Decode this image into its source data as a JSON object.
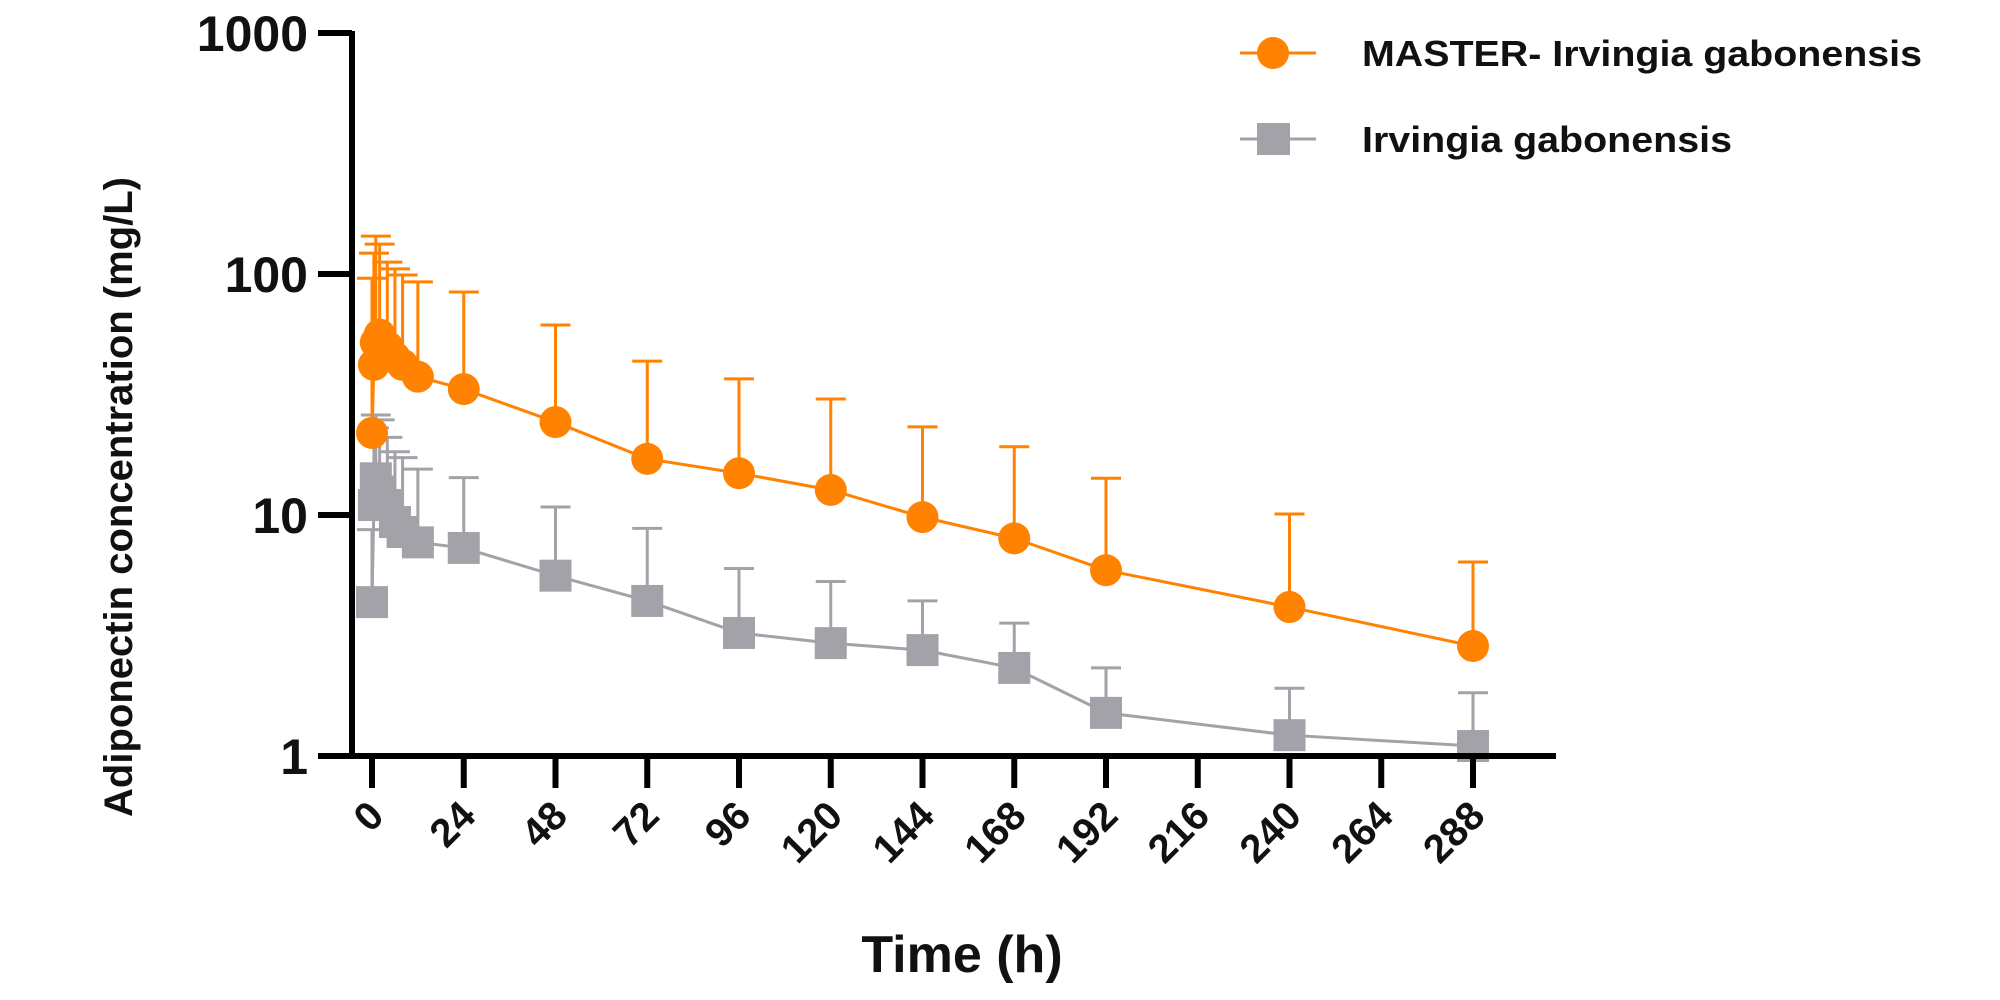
{
  "chart_data": {
    "type": "line",
    "title": "",
    "xlabel": "Time (h)",
    "ylabel": "Adiponectin concentration (mg/L)",
    "yscale": "log",
    "ylim": [
      1,
      1000
    ],
    "xlim": [
      0,
      300
    ],
    "x_ticks": [
      0,
      24,
      48,
      72,
      96,
      120,
      144,
      168,
      192,
      216,
      240,
      264,
      288
    ],
    "x_tick_labels": [
      "0",
      "24",
      "48",
      "72",
      "96",
      "120",
      "144",
      "168",
      "192",
      "216",
      "240",
      "264",
      "288"
    ],
    "y_ticks": [
      1,
      10,
      100,
      1000
    ],
    "y_tick_labels": [
      "1",
      "10",
      "100",
      "1000"
    ],
    "grid": false,
    "legend_position": "top-right",
    "x": [
      0,
      0.5,
      1,
      2,
      4,
      6,
      8,
      12,
      24,
      48,
      72,
      96,
      120,
      144,
      168,
      192,
      240,
      288
    ],
    "series": [
      {
        "name": "MASTER- Irvingia gabonensis",
        "color": "#FF8200",
        "marker": "circle",
        "values": [
          21.9,
          42,
          52,
          56,
          50,
          45,
          42,
          37.5,
          33.3,
          24.3,
          17.1,
          14.9,
          12.7,
          9.8,
          8.0,
          5.9,
          4.15,
          2.86
        ],
        "error_upper": [
          96,
          122,
          143.6,
          133,
          112,
          105,
          99,
          92.7,
          84.2,
          61.4,
          43.5,
          36.7,
          30.3,
          23.2,
          19.2,
          14.2,
          10.1,
          6.38
        ]
      },
      {
        "name": "Irvingia gabonensis",
        "color": "#A2A2A8",
        "marker": "square",
        "values": [
          4.35,
          11.0,
          14.2,
          12.5,
          11.0,
          9.35,
          8.5,
          7.7,
          7.3,
          5.6,
          4.4,
          3.24,
          2.94,
          2.75,
          2.32,
          1.51,
          1.22,
          1.1
        ],
        "error_upper": [
          8.7,
          23.0,
          26.0,
          24.8,
          21.0,
          18.3,
          17.3,
          15.5,
          14.3,
          10.8,
          8.8,
          6.0,
          5.3,
          4.4,
          3.56,
          2.32,
          1.91,
          1.83
        ]
      }
    ]
  }
}
